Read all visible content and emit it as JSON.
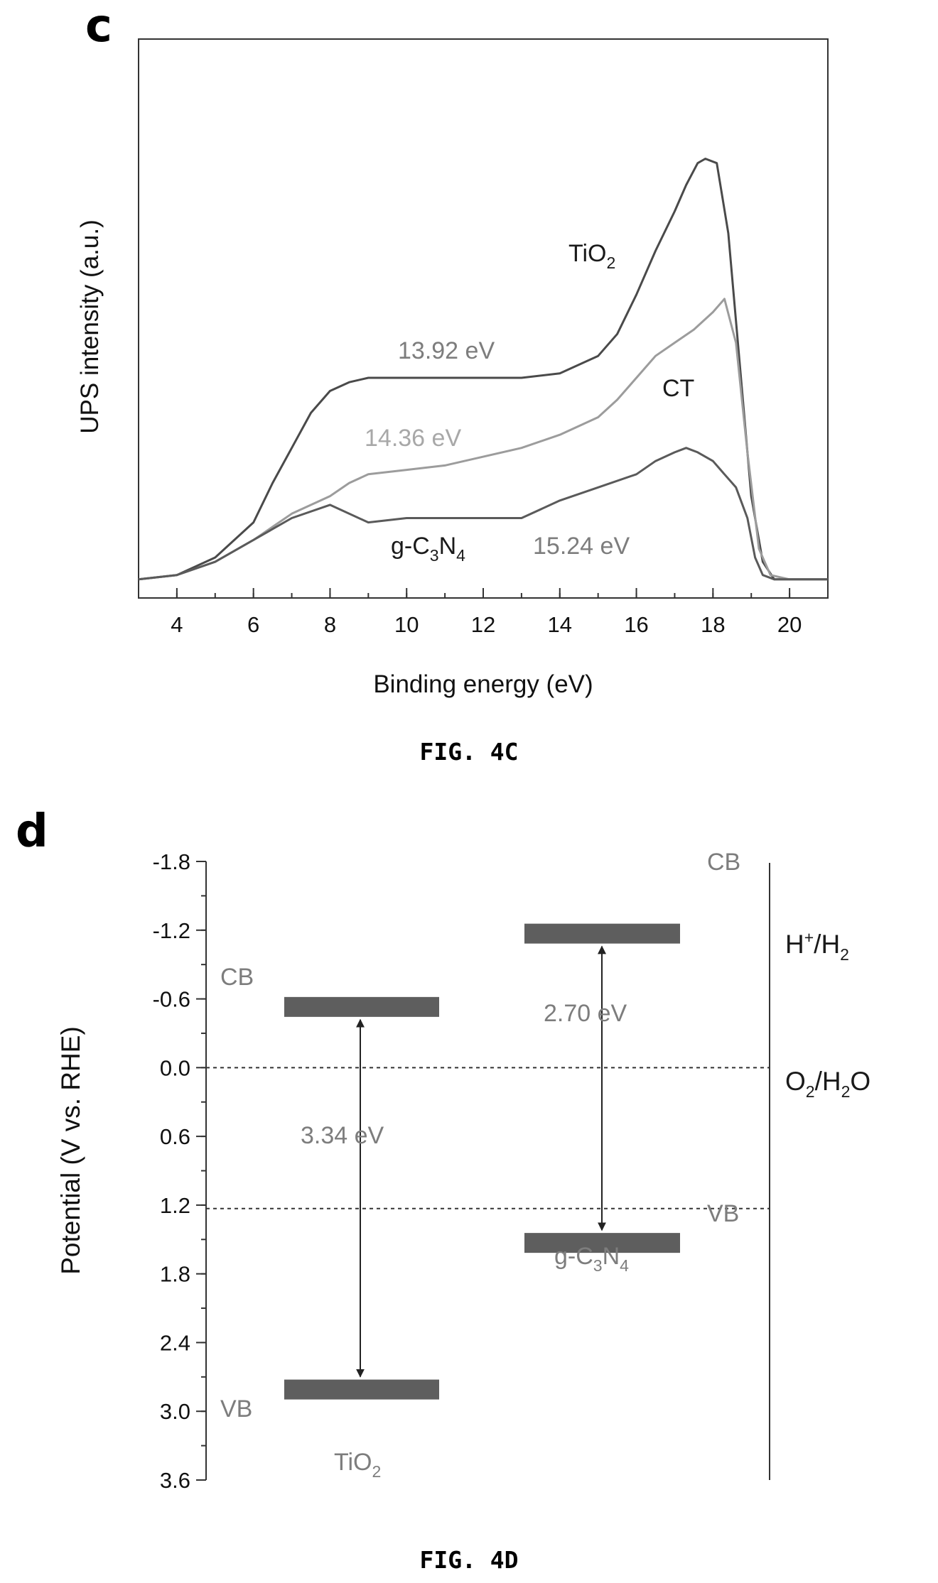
{
  "panel_c": {
    "letter": "c",
    "caption": "FIG. 4C"
  },
  "panel_d": {
    "letter": "d",
    "caption": "FIG. 4D"
  },
  "chart_data": [
    {
      "type": "line",
      "xlabel": "Binding energy (eV)",
      "ylabel": "UPS intensity (a.u.)",
      "xlim": [
        3,
        21
      ],
      "ylim": [
        0,
        1.0
      ],
      "xticks": [
        4,
        6,
        8,
        10,
        12,
        14,
        16,
        18,
        20
      ],
      "grid": false,
      "series": [
        {
          "name": "TiO2",
          "color": "#4a4a4a",
          "x": [
            3,
            4,
            5,
            6,
            6.5,
            7,
            7.5,
            8,
            8.5,
            9,
            10,
            11,
            12,
            13,
            14,
            15,
            15.5,
            16,
            16.5,
            17,
            17.3,
            17.6,
            17.8,
            18.1,
            18.4,
            18.7,
            19.0,
            19.3,
            19.6,
            20,
            21
          ],
          "y": [
            0.01,
            0.02,
            0.06,
            0.14,
            0.23,
            0.31,
            0.39,
            0.44,
            0.46,
            0.47,
            0.47,
            0.47,
            0.47,
            0.47,
            0.48,
            0.52,
            0.57,
            0.66,
            0.76,
            0.85,
            0.91,
            0.96,
            0.97,
            0.96,
            0.8,
            0.5,
            0.2,
            0.05,
            0.01,
            0.01,
            0.01
          ]
        },
        {
          "name": "CT",
          "color": "#9c9c9c",
          "x": [
            3,
            4,
            5,
            6,
            7,
            8,
            8.5,
            9,
            10,
            11,
            12,
            13,
            14,
            15,
            15.5,
            16,
            16.5,
            17,
            17.5,
            18,
            18.3,
            18.6,
            18.9,
            19.2,
            19.5,
            20,
            21
          ],
          "y": [
            0.01,
            0.02,
            0.05,
            0.1,
            0.16,
            0.2,
            0.23,
            0.25,
            0.26,
            0.27,
            0.29,
            0.31,
            0.34,
            0.38,
            0.42,
            0.47,
            0.52,
            0.55,
            0.58,
            0.62,
            0.65,
            0.55,
            0.3,
            0.08,
            0.02,
            0.01,
            0.01
          ]
        },
        {
          "name": "g-C3N4",
          "color": "#5a5a5a",
          "x": [
            3,
            4,
            5,
            6,
            7,
            8,
            9,
            10,
            11,
            12,
            13,
            14,
            15,
            16,
            16.5,
            17,
            17.3,
            17.6,
            18,
            18.3,
            18.6,
            18.9,
            19.1,
            19.3,
            19.6,
            20,
            21
          ],
          "y": [
            0.01,
            0.02,
            0.05,
            0.1,
            0.15,
            0.18,
            0.14,
            0.15,
            0.15,
            0.15,
            0.15,
            0.19,
            0.22,
            0.25,
            0.28,
            0.3,
            0.31,
            0.3,
            0.28,
            0.25,
            0.22,
            0.15,
            0.06,
            0.02,
            0.01,
            0.01,
            0.01
          ]
        }
      ],
      "annotations": [
        {
          "text": "13.92 eV",
          "series": "TiO2"
        },
        {
          "text": "14.36 eV",
          "series": "CT"
        },
        {
          "text": "15.24 eV",
          "series": "g-C3N4"
        }
      ],
      "labels": {
        "tio2_main": "TiO",
        "tio2_sub": "2",
        "ct": "CT",
        "gcn_main1": "g-C",
        "gcn_sub1": "3",
        "gcn_main2": "N",
        "gcn_sub2": "4"
      }
    },
    {
      "type": "diagram",
      "ylabel": "Potential (V vs. RHE)",
      "ylim": [
        -1.8,
        3.6
      ],
      "y_inverted": true,
      "yticks": [
        "-1.8",
        "-1.2",
        "-0.6",
        "0.0",
        "0.6",
        "1.2",
        "1.8",
        "2.4",
        "3.0",
        "3.6"
      ],
      "ytick_values": [
        -1.8,
        -1.2,
        -0.6,
        0.0,
        0.6,
        1.2,
        1.8,
        2.4,
        3.0,
        3.6
      ],
      "reference_lines": [
        {
          "value": 0.0,
          "label_main": "H",
          "label_sup": "+",
          "label_tail": "/H",
          "label_sub": "2"
        },
        {
          "value": 1.23,
          "label_main": "O",
          "label_sub1": "2",
          "label_mid": "/H",
          "label_sub2": "2",
          "label_tail": "O"
        }
      ],
      "materials": [
        {
          "name_main": "TiO",
          "name_sub": "2",
          "cb": -0.53,
          "vb": 2.81,
          "cb_label": "CB",
          "vb_label": "VB",
          "gap_label": "3.34 eV"
        },
        {
          "name_main1": "g-C",
          "name_sub1": "3",
          "name_main2": "N",
          "name_sub2": "4",
          "cb": -1.17,
          "vb": 1.53,
          "cb_label": "CB",
          "vb_label": "VB",
          "gap_label": "2.70 eV"
        }
      ]
    }
  ]
}
